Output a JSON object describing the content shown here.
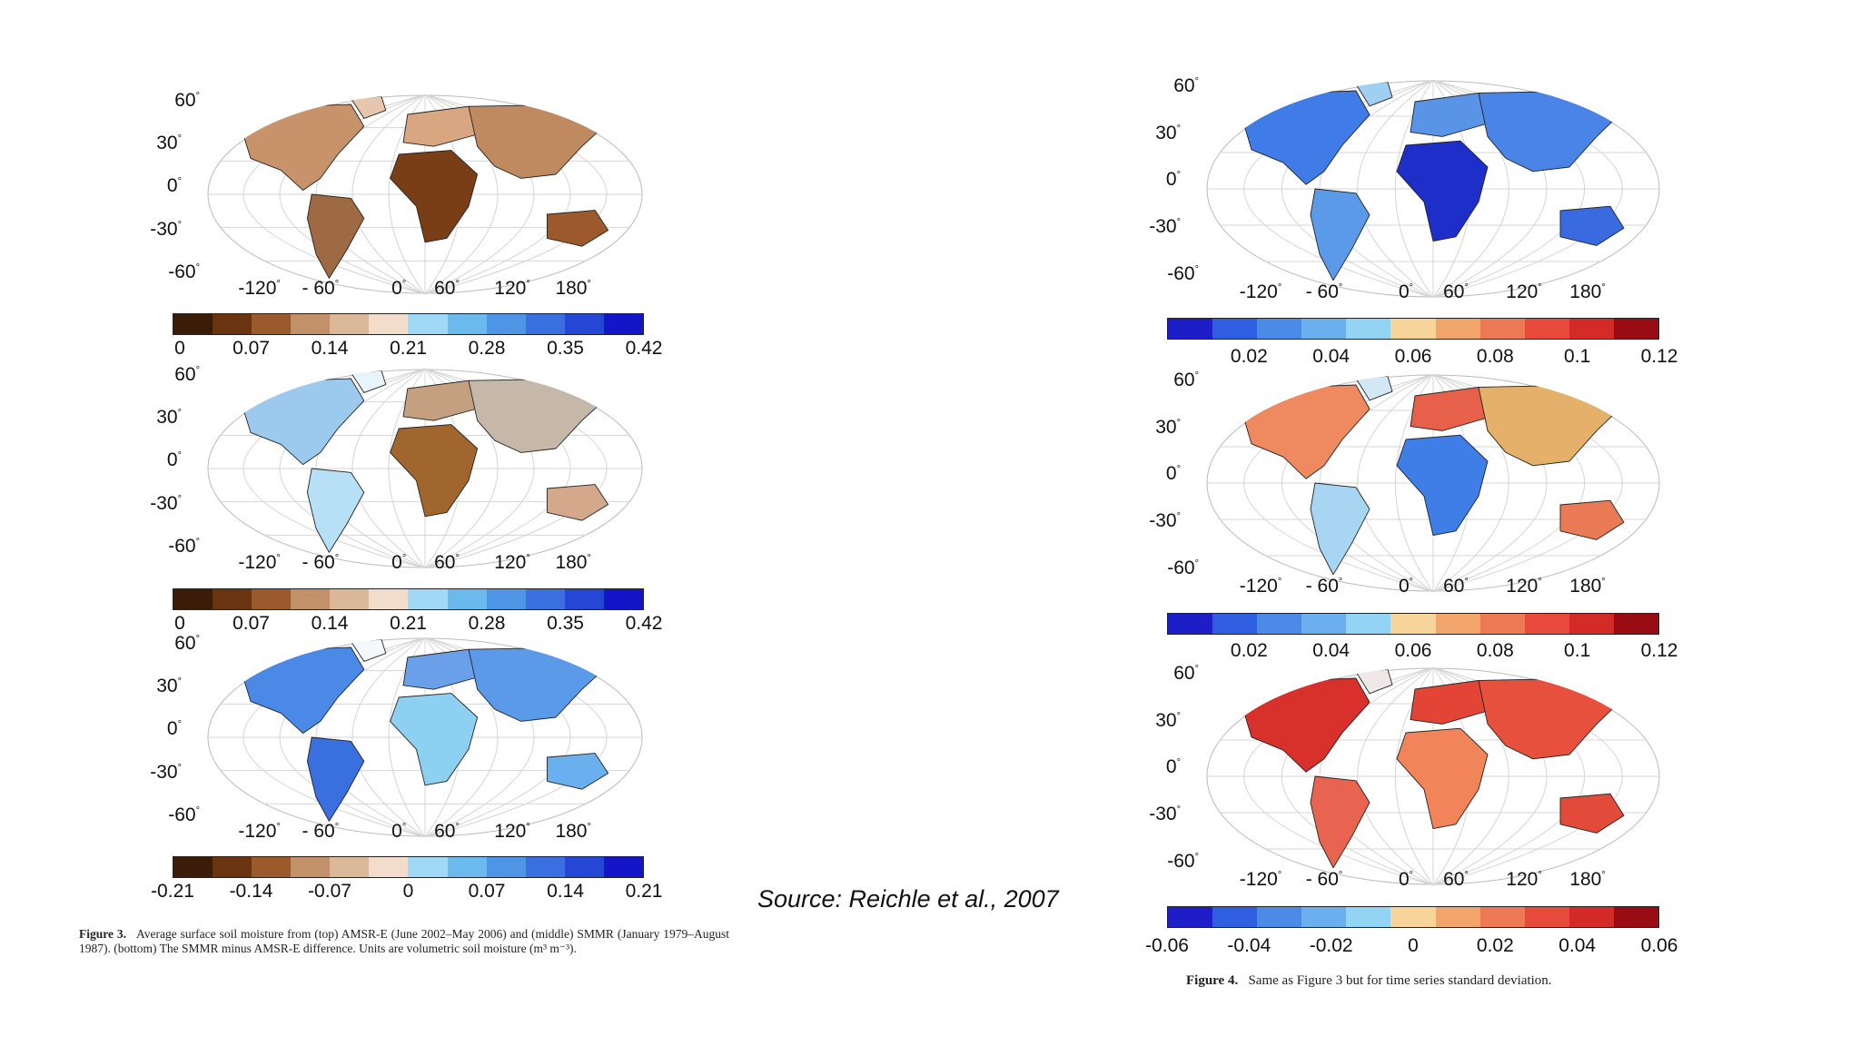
{
  "source": "Source: Reichle et al., 2007",
  "figure3": {
    "caption_label": "Figure 3.",
    "caption_text": "Average surface soil moisture from (top) AMSR-E (June 2002–May 2006) and (middle) SMMR (January 1979–August 1987). (bottom) The SMMR minus AMSR-E difference. Units are volumetric soil moisture (m³ m⁻³).",
    "maps": [
      {
        "lat_ticks": [
          "60",
          "30",
          "0",
          "-30",
          "-60"
        ],
        "lon_ticks": [
          "-120",
          "- 60",
          "0",
          "60",
          "120",
          "180"
        ],
        "colorbar": [
          "0",
          "0.07",
          "0.14",
          "0.21",
          "0.28",
          "0.35",
          "0.42"
        ]
      },
      {
        "lat_ticks": [
          "60",
          "30",
          "0",
          "-30",
          "-60"
        ],
        "lon_ticks": [
          "-120",
          "- 60",
          "0",
          "60",
          "120",
          "180"
        ],
        "colorbar": [
          "0",
          "0.07",
          "0.14",
          "0.21",
          "0.28",
          "0.35",
          "0.42"
        ]
      },
      {
        "lat_ticks": [
          "60",
          "30",
          "0",
          "-30",
          "-60"
        ],
        "lon_ticks": [
          "-120",
          "- 60",
          "0",
          "60",
          "120",
          "180"
        ],
        "colorbar": [
          "-0.21",
          "-0.14",
          "-0.07",
          "0",
          "0.07",
          "0.14",
          "0.21"
        ]
      }
    ],
    "colors": [
      "#3a1c08",
      "#6b3410",
      "#9a5a2c",
      "#c2916a",
      "#dcb89a",
      "#f2dccb",
      "#9fd9f5",
      "#6cb9ee",
      "#4e95e6",
      "#3a6fe0",
      "#2646d6",
      "#1414c8"
    ]
  },
  "figure4": {
    "caption_label": "Figure 4.",
    "caption_text": "Same as Figure 3 but for time series standard deviation.",
    "maps": [
      {
        "lat_ticks": [
          "60",
          "30",
          "0",
          "-30",
          "-60"
        ],
        "lon_ticks": [
          "-120",
          "- 60",
          "0",
          "60",
          "120",
          "180"
        ],
        "colorbar": [
          "0.02",
          "0.04",
          "0.06",
          "0.08",
          "0.1",
          "0.12"
        ]
      },
      {
        "lat_ticks": [
          "60",
          "30",
          "0",
          "-30",
          "-60"
        ],
        "lon_ticks": [
          "-120",
          "- 60",
          "0",
          "60",
          "120",
          "180"
        ],
        "colorbar": [
          "0.02",
          "0.04",
          "0.06",
          "0.08",
          "0.1",
          "0.12"
        ]
      },
      {
        "lat_ticks": [
          "60",
          "30",
          "0",
          "-30",
          "-60"
        ],
        "lon_ticks": [
          "-120",
          "- 60",
          "0",
          "60",
          "120",
          "180"
        ],
        "colorbar": [
          "-0.06",
          "-0.04",
          "-0.02",
          "0",
          "0.02",
          "0.04",
          "0.06"
        ]
      }
    ],
    "colors": [
      "#1e1ec8",
      "#2f5fe0",
      "#4c8ae8",
      "#6ab0ee",
      "#93d3f3",
      "#f6d49a",
      "#f2a56a",
      "#ee7a55",
      "#e84a3c",
      "#d42a28",
      "#9a0c14"
    ]
  }
}
